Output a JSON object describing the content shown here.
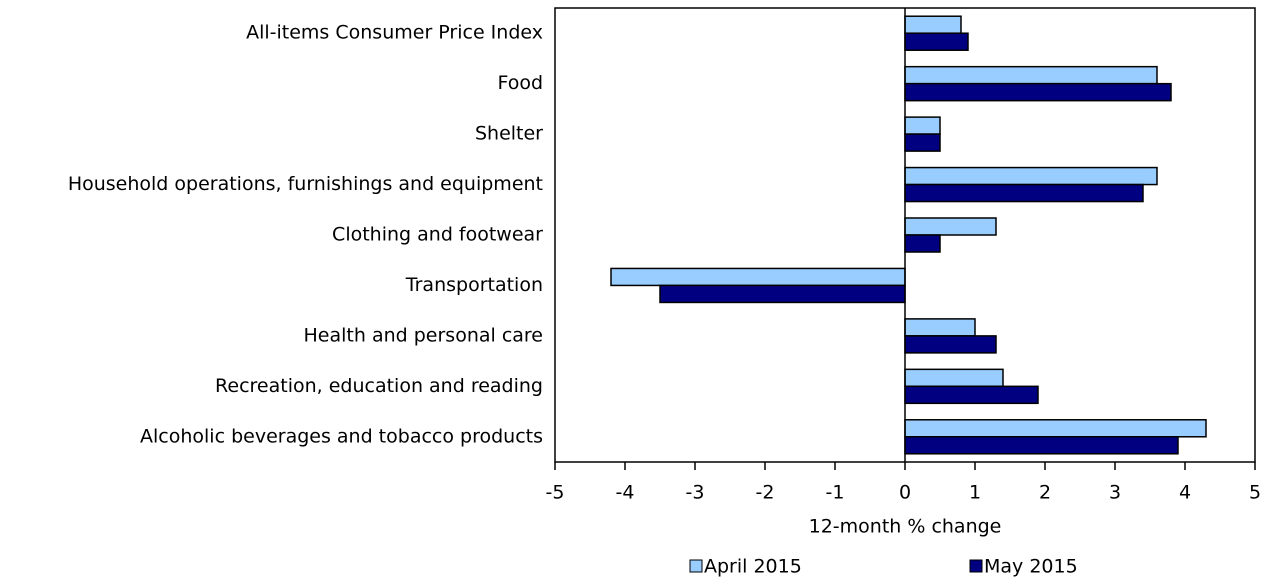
{
  "chart_data": {
    "type": "bar",
    "orientation": "horizontal",
    "categories": [
      "All-items Consumer Price Index",
      "Food",
      "Shelter",
      "Household operations, furnishings and equipment",
      "Clothing and footwear",
      "Transportation",
      "Health and personal care",
      "Recreation, education and reading",
      "Alcoholic beverages and tobacco products"
    ],
    "series": [
      {
        "name": "April 2015",
        "color": "#99ccff",
        "values": [
          0.8,
          3.6,
          0.5,
          3.6,
          1.3,
          -4.2,
          1.0,
          1.4,
          4.3
        ]
      },
      {
        "name": "May 2015",
        "color": "#000080",
        "values": [
          0.9,
          3.8,
          0.5,
          3.4,
          0.5,
          -3.5,
          1.3,
          1.9,
          3.9
        ]
      }
    ],
    "xlabel": "12-month % change",
    "xlim": [
      -5,
      5
    ],
    "xticks": [
      -5,
      -4,
      -3,
      -2,
      -1,
      0,
      1,
      2,
      3,
      4,
      5
    ],
    "legend": "bottom",
    "grid": false
  }
}
